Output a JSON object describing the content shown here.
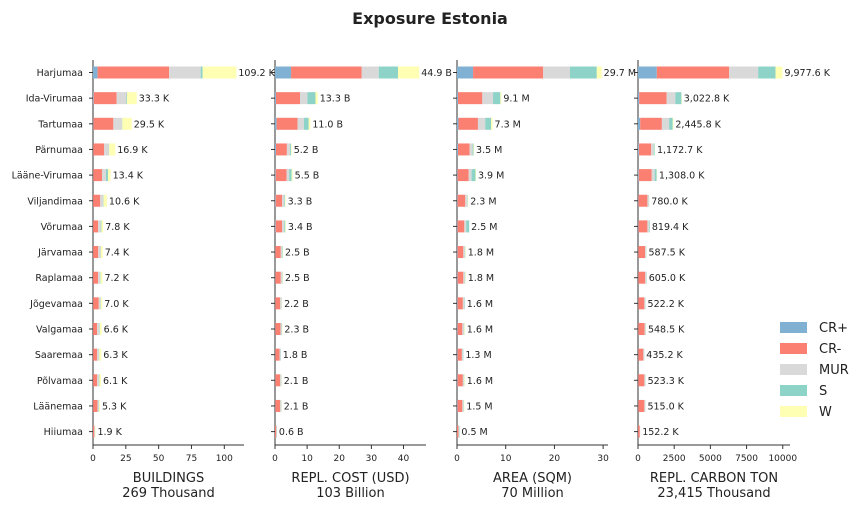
{
  "chart_data": {
    "type": "bar",
    "orientation": "horizontal",
    "stacked": true,
    "title": "Exposure Estonia",
    "categories": [
      "Harjumaa",
      "Ida-Virumaa",
      "Tartumaa",
      "Pärnumaa",
      "Lääne-Virumaa",
      "Viljandimaa",
      "Võrumaa",
      "Järvamaa",
      "Raplamaa",
      "Jõgevamaa",
      "Valgamaa",
      "Saaremaa",
      "Põlvamaa",
      "Läänemaa",
      "Hiiumaa"
    ],
    "legend": {
      "placement": "right",
      "entries": [
        {
          "key": "CR+",
          "color": "#80b1d3"
        },
        {
          "key": "CR-",
          "color": "#fb8072"
        },
        {
          "key": "MUR",
          "color": "#d9d9d9"
        },
        {
          "key": "S",
          "color": "#8dd3c7"
        },
        {
          "key": "W",
          "color": "#ffffb3"
        }
      ]
    },
    "panels": [
      {
        "xlabel": "BUILDINGS",
        "total_label": "269 Thousand",
        "xlim": [
          0,
          115
        ],
        "xticks": [
          0,
          25,
          50,
          75,
          100
        ],
        "tick_labels": [
          "0",
          "25",
          "50",
          "75",
          "100"
        ],
        "series": {
          "CR+": [
            3.5,
            0.5,
            0.3,
            0.2,
            0.2,
            0.1,
            0.1,
            0.1,
            0.1,
            0.1,
            0.1,
            0.1,
            0.1,
            0.1,
            0.0
          ],
          "CR-": [
            54.5,
            17.5,
            15.2,
            8.3,
            6.7,
            5.4,
            3.8,
            3.9,
            3.8,
            4.3,
            3.0,
            3.0,
            3.0,
            3.3,
            1.0
          ],
          "MUR": [
            24.0,
            7.5,
            6.5,
            3.5,
            3.0,
            2.3,
            2.0,
            1.8,
            1.6,
            1.4,
            1.7,
            1.4,
            1.5,
            1.0,
            0.5
          ],
          "S": [
            1.5,
            0.4,
            0.3,
            0.3,
            1.5,
            0.2,
            0.5,
            0.2,
            0.3,
            0.2,
            0.4,
            0.3,
            0.3,
            0.3,
            0.1
          ],
          "W": [
            25.7,
            7.4,
            7.2,
            4.6,
            2.0,
            2.6,
            1.4,
            1.4,
            1.4,
            1.0,
            1.4,
            1.5,
            1.2,
            0.6,
            0.3
          ]
        },
        "value_labels": [
          "109.2 K",
          "33.3 K",
          "29.5 K",
          "16.9 K",
          "13.4 K",
          "10.6 K",
          "7.8 K",
          "7.4 K",
          "7.2 K",
          "7.0 K",
          "6.6 K",
          "6.3 K",
          "6.1 K",
          "5.3 K",
          "1.9 K"
        ]
      },
      {
        "xlabel": "REPL. COST (USD)",
        "total_label": "103 Billion",
        "xlim": [
          0,
          47
        ],
        "xticks": [
          0,
          10,
          20,
          30,
          40
        ],
        "tick_labels": [
          "0",
          "10",
          "20",
          "30",
          "40"
        ],
        "series": {
          "CR+": [
            5.0,
            0.3,
            0.5,
            0.3,
            0.2,
            0.2,
            0.2,
            0.1,
            0.1,
            0.1,
            0.1,
            0.1,
            0.1,
            0.1,
            0.0
          ],
          "CR-": [
            22.0,
            7.5,
            6.5,
            3.4,
            3.4,
            2.0,
            2.0,
            1.7,
            1.7,
            1.5,
            1.6,
            1.3,
            1.5,
            1.5,
            0.4
          ],
          "MUR": [
            5.3,
            2.3,
            2.0,
            1.0,
            0.8,
            0.7,
            0.7,
            0.4,
            0.5,
            0.4,
            0.4,
            0.3,
            0.3,
            0.3,
            0.1
          ],
          "S": [
            6.0,
            2.5,
            1.5,
            0.3,
            0.8,
            0.2,
            0.3,
            0.2,
            0.1,
            0.1,
            0.1,
            0.1,
            0.1,
            0.1,
            0.1
          ],
          "W": [
            6.6,
            0.7,
            0.5,
            0.2,
            0.3,
            0.2,
            0.2,
            0.1,
            0.1,
            0.1,
            0.1,
            0.0,
            0.1,
            0.1,
            0.0
          ]
        },
        "value_labels": [
          "44.9 B",
          "13.3 B",
          "11.0 B",
          "5.2 B",
          "5.5 B",
          "3.3 B",
          "3.4 B",
          "2.5 B",
          "2.5 B",
          "2.2 B",
          "2.3 B",
          "1.8 B",
          "2.1 B",
          "2.1 B",
          "0.6 B"
        ]
      },
      {
        "xlabel": "AREA (SQM)",
        "total_label": "70 Million",
        "xlim": [
          0,
          31
        ],
        "xticks": [
          0,
          10,
          20,
          30
        ],
        "tick_labels": [
          "0",
          "10",
          "20",
          "30"
        ],
        "series": {
          "CR+": [
            3.3,
            0.2,
            0.3,
            0.2,
            0.1,
            0.1,
            0.1,
            0.1,
            0.1,
            0.1,
            0.1,
            0.1,
            0.1,
            0.1,
            0.0
          ],
          "CR-": [
            14.4,
            5.0,
            4.0,
            2.4,
            2.3,
            1.6,
            1.4,
            1.2,
            1.2,
            1.1,
            1.0,
            0.9,
            1.1,
            1.0,
            0.3
          ],
          "MUR": [
            5.5,
            2.2,
            1.5,
            0.6,
            0.6,
            0.4,
            0.4,
            0.3,
            0.3,
            0.3,
            0.3,
            0.2,
            0.2,
            0.2,
            0.1
          ],
          "S": [
            5.5,
            1.5,
            1.2,
            0.2,
            0.8,
            0.1,
            0.6,
            0.1,
            0.1,
            0.1,
            0.1,
            0.1,
            0.1,
            0.1,
            0.1
          ],
          "W": [
            1.0,
            0.2,
            0.3,
            0.1,
            0.1,
            0.1,
            0.0,
            0.1,
            0.1,
            0.0,
            0.1,
            0.0,
            0.1,
            0.1,
            0.0
          ]
        },
        "value_labels": [
          "29.7 M",
          "9.1 M",
          "7.3 M",
          "3.5 M",
          "3.9 M",
          "2.3 M",
          "2.5 M",
          "1.8 M",
          "1.8 M",
          "1.6 M",
          "1.6 M",
          "1.3 M",
          "1.6 M",
          "1.5 M",
          "0.5 M"
        ]
      },
      {
        "xlabel": "REPL. CARBON TON",
        "total_label": "23,415 Thousand",
        "xlim": [
          0,
          10500
        ],
        "xticks": [
          0,
          2500,
          5000,
          7500,
          10000
        ],
        "tick_labels": [
          "0",
          "2500",
          "5000",
          "7500",
          "10000"
        ],
        "series": {
          "CR+": [
            1300,
            80,
            150,
            60,
            50,
            30,
            30,
            20,
            20,
            20,
            20,
            20,
            20,
            20,
            5
          ],
          "CR-": [
            5000,
            1900,
            1500,
            850,
            900,
            620,
            620,
            470,
            480,
            420,
            440,
            350,
            420,
            420,
            120
          ],
          "MUR": [
            2000,
            600,
            500,
            180,
            200,
            100,
            110,
            70,
            80,
            60,
            60,
            50,
            60,
            55,
            20
          ],
          "S": [
            1200,
            420,
            250,
            60,
            140,
            20,
            50,
            20,
            20,
            20,
            20,
            15,
            20,
            15,
            5
          ],
          "W": [
            477.6,
            22.8,
            45.8,
            22.7,
            18.0,
            10.0,
            9.4,
            7.5,
            5.0,
            2.2,
            8.5,
            0.2,
            3.3,
            5.0,
            2.2
          ]
        },
        "value_labels": [
          "9,977.6 K",
          "3,022.8 K",
          "2,445.8 K",
          "1,172.7 K",
          "1,308.0 K",
          "780.0 K",
          "819.4 K",
          "587.5 K",
          "605.0 K",
          "522.2 K",
          "548.5 K",
          "435.2 K",
          "523.3 K",
          "515.0 K",
          "152.2 K"
        ]
      }
    ]
  }
}
